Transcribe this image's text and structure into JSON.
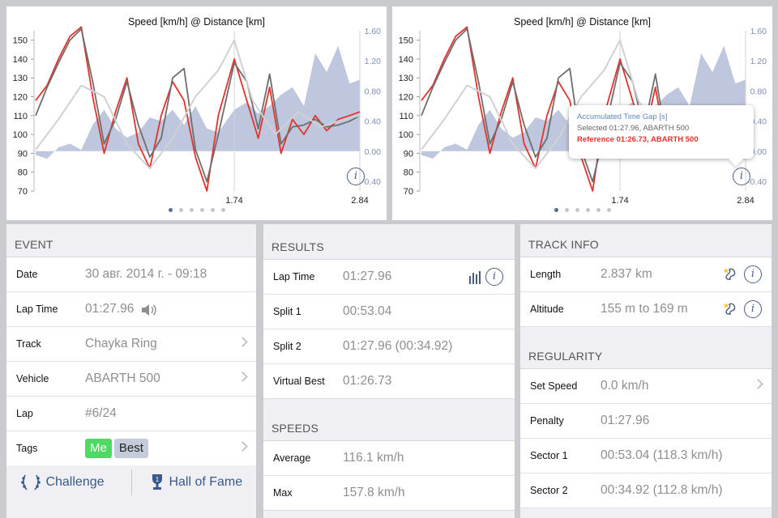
{
  "chart_left": {
    "title": "Speed [km/h] @ Distance [km]",
    "y_left_ticks": [
      "150",
      "140",
      "130",
      "120",
      "110",
      "100",
      "90",
      "80",
      "70"
    ],
    "y_right_ticks": [
      "1.60",
      "1.20",
      "0.80",
      "0.40",
      "0.00",
      "-0.40"
    ],
    "x_ticks": [
      "1.74",
      "2.84"
    ],
    "info_icon": "info-icon",
    "page_dots": 6,
    "active_dot": 0
  },
  "chart_right": {
    "title": "Speed [km/h] @ Distance [km]",
    "y_left_ticks": [
      "150",
      "140",
      "130",
      "120",
      "110",
      "100",
      "90",
      "80",
      "70"
    ],
    "y_right_ticks": [
      "1.60",
      "1.20",
      "0.80",
      "0.40",
      "0.00",
      "-0.40"
    ],
    "x_ticks": [
      "1.74",
      "2.84"
    ],
    "tooltip": {
      "title": "Accumulated Time Gap [s]",
      "selected": "Selected 01:27.96, ABARTH 500",
      "reference": "Reference 01:26.73, ABARTH 500"
    },
    "page_dots": 6,
    "active_dot": 0
  },
  "chart_data": [
    {
      "type": "line",
      "title": "Speed [km/h] @ Distance [km]",
      "xlabel": "",
      "ylabel": "",
      "x_ticks": [
        1.74,
        2.84
      ],
      "ylim": [
        70,
        155
      ],
      "y2lim": [
        -0.4,
        1.6
      ],
      "series": [
        {
          "color": "#e0342c",
          "x": [
            0.0,
            0.1,
            0.2,
            0.3,
            0.4,
            0.5,
            0.6,
            0.7,
            0.8,
            0.9,
            1.0,
            1.1,
            1.2,
            1.3,
            1.4,
            1.5,
            1.6,
            1.74,
            1.85,
            1.95,
            2.05,
            2.15,
            2.25,
            2.35,
            2.45,
            2.55,
            2.65,
            2.75,
            2.84
          ],
          "values": [
            118,
            126,
            140,
            152,
            157,
            120,
            90,
            112,
            130,
            95,
            82,
            110,
            128,
            118,
            88,
            70,
            110,
            140,
            118,
            98,
            125,
            90,
            108,
            100,
            110,
            102,
            108,
            110,
            112
          ]
        },
        {
          "color": "#6e6e6e",
          "x": [
            0.0,
            0.1,
            0.2,
            0.3,
            0.4,
            0.5,
            0.6,
            0.7,
            0.8,
            0.9,
            1.0,
            1.1,
            1.2,
            1.3,
            1.4,
            1.5,
            1.6,
            1.74,
            1.85,
            1.95,
            2.05,
            2.15,
            2.25,
            2.35,
            2.45,
            2.55,
            2.65,
            2.75,
            2.84
          ],
          "values": [
            110,
            125,
            138,
            150,
            156,
            128,
            95,
            108,
            128,
            105,
            88,
            98,
            130,
            135,
            92,
            75,
            100,
            138,
            128,
            103,
            132,
            95,
            104,
            105,
            108,
            104,
            105,
            107,
            110
          ]
        },
        {
          "color": "#cfd1d4",
          "x": [
            0.0,
            0.2,
            0.4,
            0.6,
            0.8,
            1.0,
            1.2,
            1.4,
            1.6,
            1.74,
            1.9,
            2.1,
            2.3,
            2.5,
            2.7,
            2.84
          ],
          "values": [
            92,
            108,
            126,
            120,
            95,
            82,
            98,
            120,
            134,
            150,
            118,
            100,
            112,
            104,
            108,
            110
          ]
        },
        {
          "color": "#a9b4d3",
          "axis": "right",
          "x": [
            0.0,
            0.1,
            0.2,
            0.3,
            0.4,
            0.5,
            0.6,
            0.7,
            0.8,
            0.9,
            1.0,
            1.1,
            1.2,
            1.3,
            1.4,
            1.5,
            1.6,
            1.74,
            1.85,
            1.95,
            2.05,
            2.15,
            2.25,
            2.35,
            2.45,
            2.55,
            2.65,
            2.75,
            2.84
          ],
          "values": [
            -0.05,
            -0.1,
            0.05,
            0.1,
            0.02,
            0.35,
            0.55,
            0.3,
            0.18,
            0.25,
            0.45,
            0.4,
            0.55,
            0.35,
            0.6,
            0.3,
            0.25,
            0.55,
            0.65,
            0.5,
            0.6,
            0.75,
            0.85,
            0.6,
            1.3,
            1.05,
            1.4,
            0.9,
            0.95
          ]
        }
      ]
    },
    {
      "type": "line",
      "title": "Speed [km/h] @ Distance [km]",
      "xlabel": "",
      "ylabel": "",
      "x_ticks": [
        1.74,
        2.84
      ],
      "ylim": [
        70,
        155
      ],
      "y2lim": [
        -0.4,
        1.6
      ],
      "series": [
        {
          "color": "#e0342c",
          "x": [
            0.0,
            0.1,
            0.2,
            0.3,
            0.4,
            0.5,
            0.6,
            0.7,
            0.8,
            0.9,
            1.0,
            1.1,
            1.2,
            1.3,
            1.4,
            1.5,
            1.6,
            1.74,
            1.85,
            1.95,
            2.05,
            2.15,
            2.25,
            2.35,
            2.45,
            2.55,
            2.65,
            2.75,
            2.84
          ],
          "values": [
            118,
            126,
            140,
            152,
            157,
            120,
            90,
            112,
            130,
            95,
            82,
            110,
            128,
            118,
            88,
            70,
            110,
            140,
            118,
            98,
            125,
            90,
            108,
            100,
            110,
            102,
            108,
            110,
            112
          ]
        },
        {
          "color": "#6e6e6e",
          "x": [
            0.0,
            0.1,
            0.2,
            0.3,
            0.4,
            0.5,
            0.6,
            0.7,
            0.8,
            0.9,
            1.0,
            1.1,
            1.2,
            1.3,
            1.4,
            1.5,
            1.6,
            1.74,
            1.85,
            1.95,
            2.05,
            2.15,
            2.25,
            2.35,
            2.45,
            2.55,
            2.65,
            2.75,
            2.84
          ],
          "values": [
            110,
            125,
            138,
            150,
            156,
            128,
            95,
            108,
            128,
            105,
            88,
            98,
            130,
            135,
            92,
            75,
            100,
            138,
            128,
            103,
            132,
            95,
            104,
            105,
            108,
            104,
            105,
            107,
            110
          ]
        },
        {
          "color": "#cfd1d4",
          "x": [
            0.0,
            0.2,
            0.4,
            0.6,
            0.8,
            1.0,
            1.2,
            1.4,
            1.6,
            1.74,
            1.9,
            2.1,
            2.3,
            2.5,
            2.7,
            2.84
          ],
          "values": [
            92,
            108,
            126,
            120,
            95,
            82,
            98,
            120,
            134,
            150,
            118,
            100,
            112,
            104,
            108,
            110
          ]
        },
        {
          "color": "#a9b4d3",
          "axis": "right",
          "x": [
            0.0,
            0.1,
            0.2,
            0.3,
            0.4,
            0.5,
            0.6,
            0.7,
            0.8,
            0.9,
            1.0,
            1.1,
            1.2,
            1.3,
            1.4,
            1.5,
            1.6,
            1.74,
            1.85,
            1.95,
            2.05,
            2.15,
            2.25,
            2.35,
            2.45,
            2.55,
            2.65,
            2.75,
            2.84
          ],
          "values": [
            -0.05,
            -0.1,
            0.05,
            0.1,
            0.02,
            0.35,
            0.55,
            0.3,
            0.18,
            0.25,
            0.45,
            0.4,
            0.55,
            0.35,
            0.6,
            0.3,
            0.25,
            0.55,
            0.65,
            0.5,
            0.6,
            0.75,
            0.85,
            0.6,
            1.3,
            1.05,
            1.4,
            0.9,
            0.95
          ]
        }
      ]
    }
  ],
  "event": {
    "header": "EVENT",
    "rows": [
      {
        "label": "Date",
        "value": "30 авг. 2014 г. - 09:18"
      },
      {
        "label": "Lap Time",
        "value": "01:27.96"
      },
      {
        "label": "Track",
        "value": "Chayka Ring"
      },
      {
        "label": "Vehicle",
        "value": "ABARTH 500"
      },
      {
        "label": "Lap",
        "value": "#6/24"
      },
      {
        "label": "Tags",
        "tags": [
          "Me",
          "Best"
        ]
      }
    ],
    "challenge_label": "Challenge",
    "hall_of_fame_label": "Hall of Fame"
  },
  "results": {
    "header": "RESULTS",
    "rows": [
      {
        "label": "Lap Time",
        "value": "01:27.96"
      },
      {
        "label": "Split 1",
        "value": "00:53.04"
      },
      {
        "label": "Split 2",
        "value": "01:27.96 (00:34.92)"
      },
      {
        "label": "Virtual Best",
        "value": "01:26.73"
      }
    ],
    "speeds_header": "SPEEDS",
    "speed_rows": [
      {
        "label": "Average",
        "value": "116.1 km/h"
      },
      {
        "label": "Max",
        "value": "157.8 km/h"
      }
    ]
  },
  "track": {
    "header": "TRACK INFO",
    "rows": [
      {
        "label": "Length",
        "value": "2.837 km"
      },
      {
        "label": "Altitude",
        "value": "155 m to 169 m"
      }
    ],
    "regularity_header": "REGULARITY",
    "regularity_rows": [
      {
        "label": "Set Speed",
        "value": "0.0 km/h"
      },
      {
        "label": "Penalty",
        "value": "01:27.96"
      },
      {
        "label": "Sector 1",
        "value": "00:53.04 (118.3 km/h)"
      },
      {
        "label": "Sector 2",
        "value": "00:34.92 (112.8 km/h)"
      }
    ]
  },
  "colors": {
    "accent": "#3a5a8c",
    "selected_line": "#6e6e6e",
    "reference_line": "#e0342c",
    "gap_area": "#a9b4d3",
    "tag_me": "#4cd964",
    "tag_best": "#c5ccd9"
  }
}
